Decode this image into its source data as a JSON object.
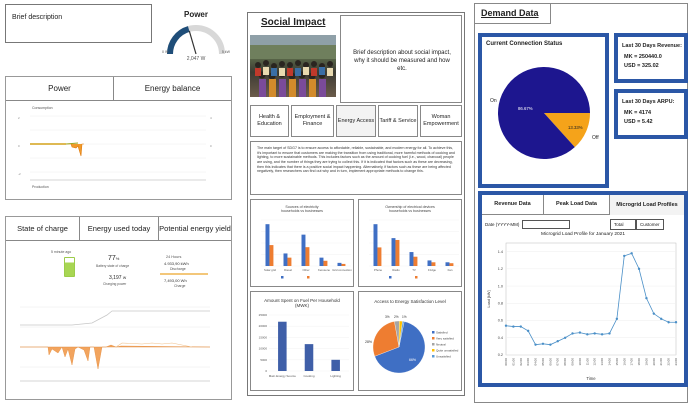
{
  "left": {
    "brief": "Brief description",
    "power_gauge": {
      "title": "Power",
      "min": "0 W",
      "max": "5 kW",
      "value": "2,047 W",
      "fraction": 0.41
    },
    "tabs1": [
      "Power",
      "Energy balance"
    ],
    "chart1_caption_top": "Consumption",
    "chart1_caption_bottom": "Production",
    "tabs2": [
      "State of charge",
      "Energy used today",
      "Potential energy yield"
    ],
    "soc": {
      "caption": "5 minute ago",
      "percent": "77",
      "unit": "%",
      "sub1": "Battery state of charge",
      "power": "3,197",
      "power_unit": "W",
      "sub2": "Charging power"
    },
    "energy_today": {
      "hours": "24 Hours",
      "discharge": "4.933,90 kWh",
      "discharge_label": "Discharge",
      "charge": "7,493,00 Wh",
      "charge_label": "Charge"
    }
  },
  "middle": {
    "title": "Social Impact",
    "desc": "Brief description about social impact, why it should be measured and how etc.",
    "tabs": [
      "Health & Education",
      "Employment & Finance",
      "Energy Access",
      "Tariff & Service",
      "Woman Empowerment"
    ],
    "paragraph": "The main target of SDG7 is to ensure access to affordable, reliable, sustainable, and modern energy for all. To achieve this, it's important to ensure that customers are making the transition from using traditional, more harmful methods of cooking and lighting, to more sustainable methods. This includes factors such as the amount of cooking fuel (i.e., wood, charcoal) people are using, and the number of things they are trying to collect this. If it is indicated that factors such as these are decreasing, then this indicates that there is a positive social impact happening. Alternatively, if factors such as these are being affected negatively, then researchers can find out why and in turn, implement appropriate methods to change this.",
    "c1": {
      "title": "Sources of electricity\nhouseholds vs businesses",
      "categories": [
        "Solar grid",
        "Diesel",
        "Other",
        "Kerosene",
        "Grid connection"
      ]
    },
    "c2": {
      "title": "Ownership of electrical devices\nhouseholds vs businesses",
      "categories": [
        "Phone",
        "Radio",
        "TV",
        "Fridge",
        "Fan"
      ]
    },
    "c3": {
      "title": "Amount Spent on Fuel Per Household\n(MWK)",
      "categories": [
        "Main Energy Source",
        "Cooking",
        "Lighting"
      ],
      "yticks": [
        "0",
        "5000",
        "10000",
        "15000",
        "20000",
        "25000"
      ]
    },
    "c4": {
      "title": "Access to Energy Satisfaction Level",
      "legend": [
        "Satisfied",
        "Very satisfied",
        "Neutral",
        "Quite unsatisfied",
        "Unsatisfied"
      ],
      "pct_a": "66%",
      "pct_b": "28%",
      "pct_c": "3%",
      "pct_d": "2%",
      "pct_e": "1%"
    }
  },
  "right": {
    "title": "Demand Data",
    "conn": {
      "title": "Current Connection Status",
      "on_label": "On",
      "off_label": "Off",
      "on_pct": "86.67%",
      "off_pct": "13.33%"
    },
    "revenue": {
      "title": "Last 30 Days Revenue:",
      "mk": "MK = 250440.0",
      "usd": "USD = 325.02"
    },
    "arpu": {
      "title": "Last 30 Days ARPU:",
      "mk": "MK = 4174",
      "usd": "USD = 5.42"
    },
    "tabs": [
      "Revenue Data",
      "Peak Load Data",
      "Microgrid Load Profiles"
    ],
    "date_label": "Date (YYYY-MM)",
    "toggle": [
      "Total",
      "Customer"
    ],
    "load_chart": {
      "title": "Microgrid Load Profile for January 2021",
      "ylabel": "Load [kW]",
      "xlabel": "Time"
    }
  },
  "chart_data": [
    {
      "type": "line",
      "title": "Microgrid Load Profile for January 2021",
      "xlabel": "Time",
      "ylabel": "Load [kW]",
      "x": [
        "00:00",
        "01:00",
        "02:00",
        "03:00",
        "04:00",
        "05:00",
        "06:00",
        "07:00",
        "08:00",
        "09:00",
        "10:00",
        "11:00",
        "12:00",
        "13:00",
        "14:00",
        "15:00",
        "16:00",
        "17:00",
        "18:00",
        "19:00",
        "20:00",
        "21:00",
        "22:00",
        "23:00"
      ],
      "values": [
        0.54,
        0.53,
        0.53,
        0.48,
        0.32,
        0.33,
        0.32,
        0.36,
        0.4,
        0.45,
        0.46,
        0.44,
        0.45,
        0.44,
        0.45,
        0.62,
        1.35,
        1.38,
        1.2,
        0.86,
        0.68,
        0.62,
        0.58,
        0.58
      ],
      "ylim": [
        0.2,
        1.5
      ],
      "yticks": [
        0.2,
        0.4,
        0.6,
        0.8,
        1.0,
        1.2,
        1.4
      ]
    },
    {
      "type": "pie",
      "title": "Current Connection Status",
      "categories": [
        "On",
        "Off"
      ],
      "values": [
        86.67,
        13.33
      ],
      "colors": [
        "#1d168f",
        "#f5a31a"
      ]
    },
    {
      "type": "bar",
      "title": "Amount Spent on Fuel Per Household (MWK)",
      "categories": [
        "Main Energy Source",
        "Cooking",
        "Lighting"
      ],
      "values": [
        22000,
        12000,
        5000
      ],
      "ylim": [
        0,
        25000
      ]
    },
    {
      "type": "pie",
      "title": "Access to Energy Satisfaction Level",
      "categories": [
        "Satisfied",
        "Very satisfied",
        "Neutral",
        "Quite unsatisfied",
        "Unsatisfied"
      ],
      "values": [
        66,
        28,
        3,
        2,
        1
      ]
    },
    {
      "type": "bar",
      "title": "Sources of electricity households vs businesses",
      "categories": [
        "Solar grid",
        "Diesel",
        "Other",
        "Kerosene",
        "Grid connection"
      ],
      "series": [
        {
          "values": [
            40,
            12,
            30,
            8,
            3
          ]
        },
        {
          "values": [
            20,
            8,
            18,
            5,
            2
          ]
        }
      ]
    },
    {
      "type": "bar",
      "title": "Ownership of electrical devices households vs businesses",
      "categories": [
        "Phone",
        "Radio",
        "TV",
        "Fridge",
        "Fan"
      ],
      "series": [
        {
          "values": [
            45,
            30,
            15,
            6,
            4
          ]
        },
        {
          "values": [
            20,
            28,
            10,
            4,
            3
          ]
        }
      ]
    }
  ]
}
